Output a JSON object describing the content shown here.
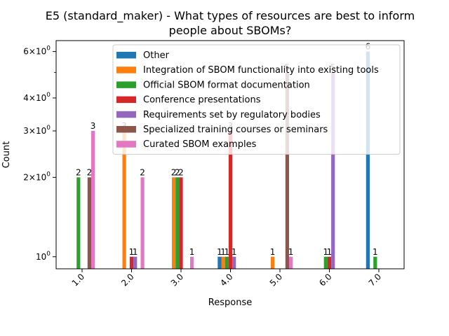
{
  "chart_data": {
    "type": "bar",
    "title_lines": [
      "E5 (standard_maker) - What types of resources are best to inform",
      "people about SBOMs?"
    ],
    "xlabel": "Response",
    "ylabel": "Count",
    "yscale": "log",
    "ylim": [
      0.9,
      6.6
    ],
    "categories": [
      "1.0",
      "2.0",
      "3.0",
      "4.0",
      "5.0",
      "6.0",
      "7.0"
    ],
    "yticks": [
      {
        "value": 1,
        "base": "10",
        "exp": "0"
      },
      {
        "value": 2,
        "base": "2×10",
        "exp": "0"
      },
      {
        "value": 3,
        "base": "3×10",
        "exp": "0"
      },
      {
        "value": 4,
        "base": "4×10",
        "exp": "0"
      },
      {
        "value": 6,
        "base": "6×10",
        "exp": "0"
      }
    ],
    "legend_position": "top-right",
    "grid": false,
    "series": [
      {
        "name": "Other",
        "color": "#1f77b4",
        "values": [
          0,
          0,
          0,
          1,
          0,
          0,
          6
        ]
      },
      {
        "name": "Integration of SBOM functionality into existing tools",
        "color": "#ff7f0e",
        "values": [
          0,
          3,
          2,
          1,
          1,
          0,
          0
        ]
      },
      {
        "name": "Official SBOM format documentation",
        "color": "#2ca02c",
        "values": [
          2,
          0,
          2,
          1,
          0,
          1,
          1
        ]
      },
      {
        "name": "Conference presentations",
        "color": "#d62728",
        "values": [
          0,
          1,
          2,
          3,
          0,
          1,
          0
        ]
      },
      {
        "name": "Requirements set by regulatory bodies",
        "color": "#9467bd",
        "values": [
          0,
          1,
          0,
          1,
          0,
          5,
          0
        ]
      },
      {
        "name": "Specialized training courses or seminars",
        "color": "#8c564b",
        "values": [
          2,
          0,
          0,
          0,
          5,
          0,
          0
        ]
      },
      {
        "name": "Curated SBOM examples",
        "color": "#e377c2",
        "values": [
          3,
          2,
          1,
          0,
          1,
          0,
          0
        ]
      }
    ]
  }
}
